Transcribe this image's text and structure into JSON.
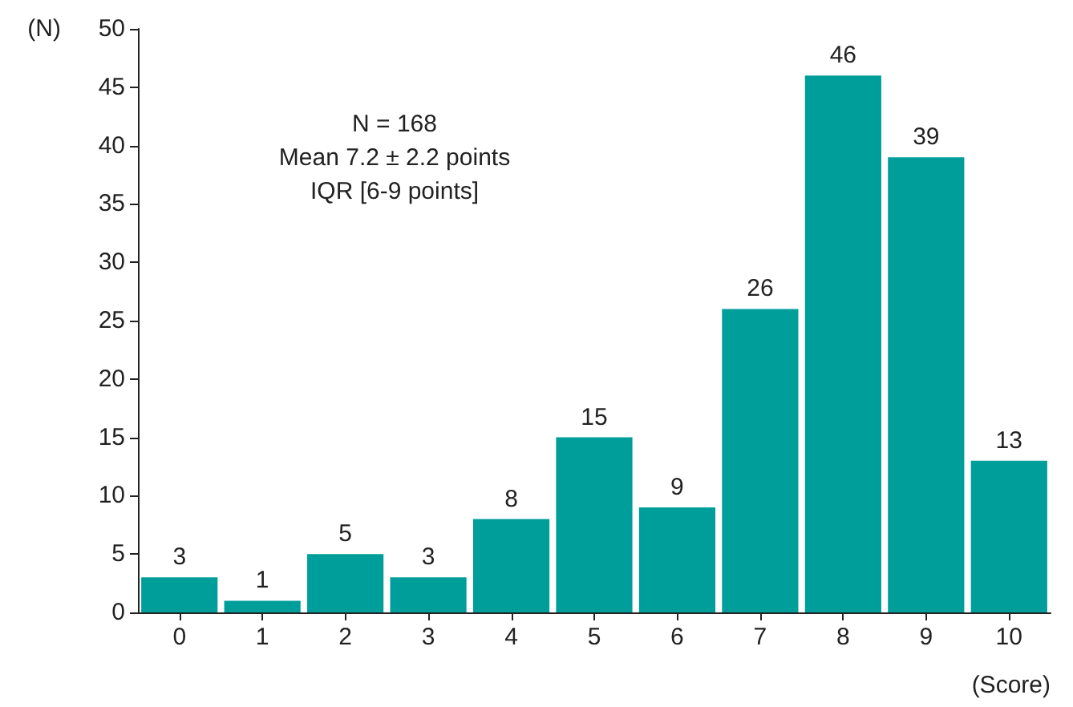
{
  "chart_data": {
    "type": "bar",
    "xlabel": "(Score)",
    "ylabel": "(N)",
    "categories": [
      "0",
      "1",
      "2",
      "3",
      "4",
      "5",
      "6",
      "7",
      "8",
      "9",
      "10"
    ],
    "values": [
      3,
      1,
      5,
      3,
      8,
      15,
      9,
      26,
      46,
      39,
      13
    ],
    "color": "#009e9a",
    "ylim": [
      0,
      50
    ],
    "yticks": [
      0,
      5,
      10,
      15,
      20,
      25,
      30,
      35,
      40,
      45,
      50
    ],
    "data_labels": true,
    "grid": false,
    "annotations": [
      "N = 168",
      "Mean 7.2 ± 2.2 points",
      "IQR [6-9 points]"
    ]
  }
}
